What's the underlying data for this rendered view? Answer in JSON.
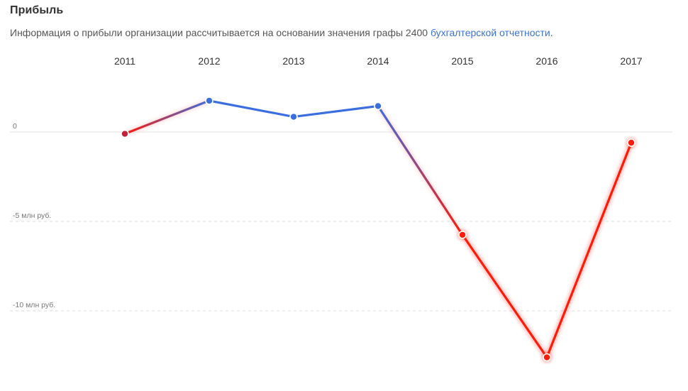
{
  "header": {
    "title": "Прибыль",
    "description_prefix": "Информация о прибыли организации рассчитывается на основании значения графы 2400 ",
    "description_link": "бухгалтерской отчетности",
    "description_suffix": "."
  },
  "colors": {
    "positive": "#3b6fe0",
    "negative": "#ff1a0a",
    "zero_point": "#c0223a",
    "grid": "#dddddd"
  },
  "chart_data": {
    "type": "line",
    "categories": [
      "2011",
      "2012",
      "2013",
      "2014",
      "2015",
      "2016",
      "2017"
    ],
    "series": [
      {
        "values": [
          -0.1,
          1.75,
          0.85,
          1.45,
          -5.75,
          -12.6,
          -0.6
        ]
      }
    ],
    "y_ticks": [
      {
        "value": 0,
        "label": "0"
      },
      {
        "value": -5,
        "label": "-5 млн руб."
      },
      {
        "value": -10,
        "label": "-10 млн руб."
      }
    ],
    "ylim": [
      -14.5,
      3.5
    ],
    "x_axis_position": "top",
    "grid": true
  }
}
